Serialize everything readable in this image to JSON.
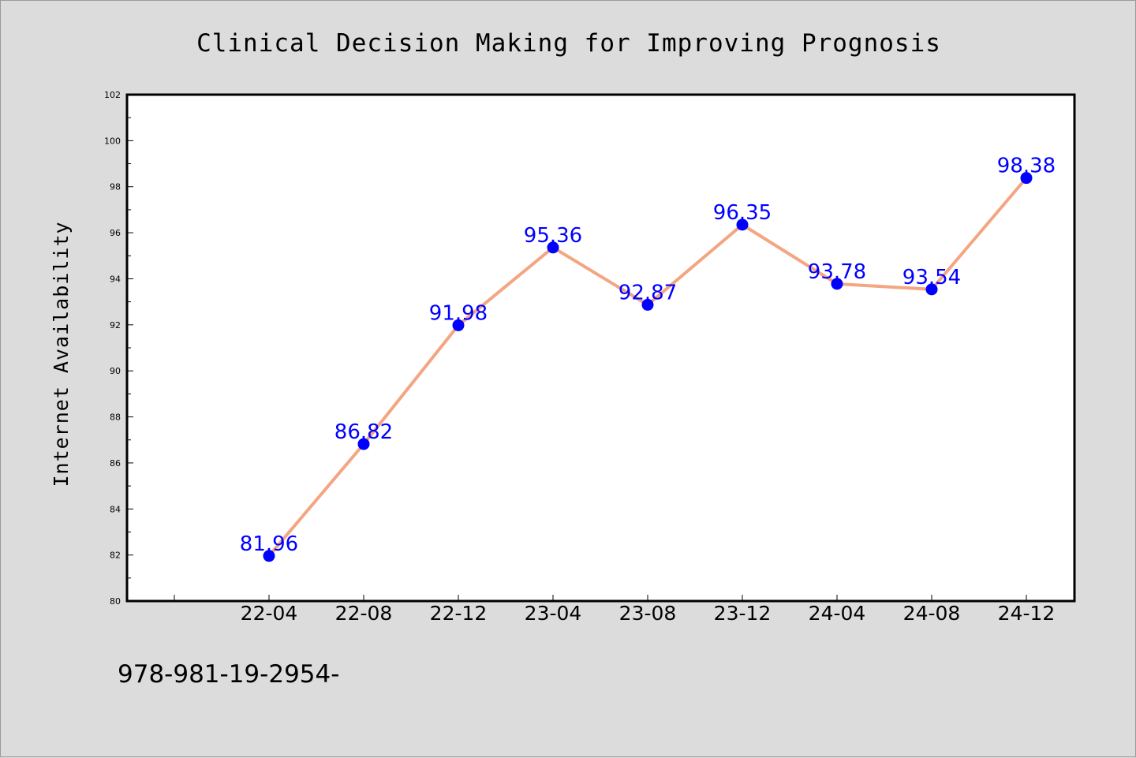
{
  "chart_data": {
    "type": "line",
    "title": "Clinical Decision Making for Improving Prognosis",
    "xlabel": "",
    "ylabel": "Internet Availability",
    "categories": [
      "22-04",
      "22-08",
      "22-12",
      "23-04",
      "23-08",
      "23-12",
      "24-04",
      "24-08",
      "24-12"
    ],
    "series": [
      {
        "values": [
          81.96,
          86.82,
          91.98,
          95.36,
          92.87,
          96.35,
          93.78,
          93.54,
          98.38
        ]
      }
    ],
    "data_labels": [
      "81.96",
      "86.82",
      "91.98",
      "95.36",
      "92.87",
      "96.35",
      "93.78",
      "93.54",
      "98.38"
    ],
    "ylim": [
      80,
      102
    ],
    "yticks": [
      80,
      82,
      84,
      86,
      88,
      90,
      92,
      94,
      96,
      98,
      100,
      102
    ],
    "grid": false,
    "colors": {
      "line": "#f4a582",
      "marker": "#0000ff",
      "label": "#0000ff",
      "background": "#dcdcdc",
      "plot_area": "#ffffff"
    }
  },
  "footer": {
    "text": "978-981-19-2954-"
  }
}
